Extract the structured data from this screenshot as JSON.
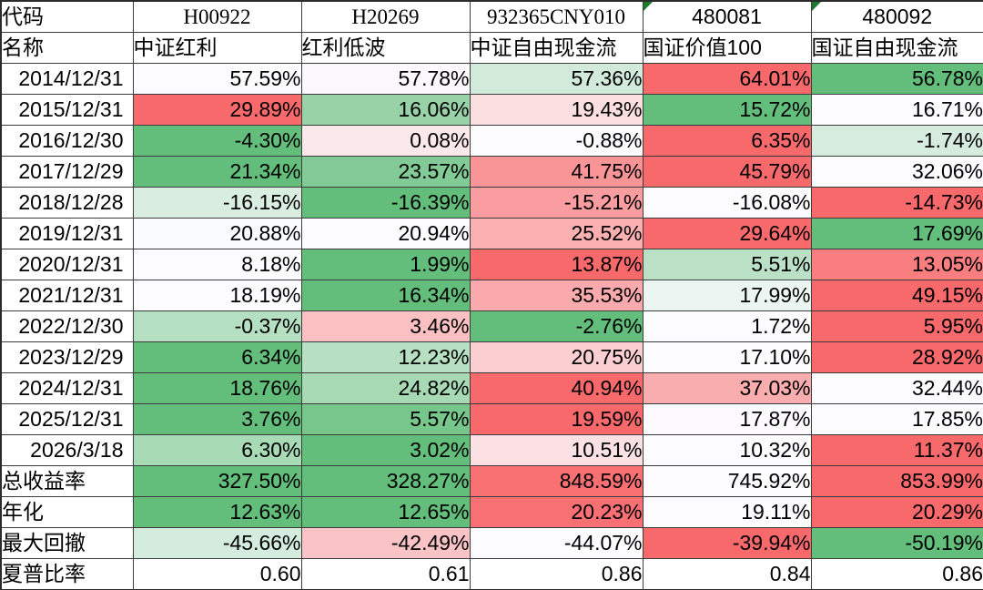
{
  "chart_data": {
    "type": "table",
    "subtype": "row-wise heatmap (green = row min, white = row median, red = row max; Sharpe row unformatted)",
    "header": {
      "code_label": "代码",
      "name_label": "名称"
    },
    "columns": [
      {
        "code": "H00922",
        "name": "中证红利",
        "code_serif": true,
        "flagged": false
      },
      {
        "code": "H20269",
        "name": "红利低波",
        "code_serif": true,
        "flagged": false
      },
      {
        "code": "932365CNY010",
        "name": "中证自由现金流",
        "code_serif": true,
        "flagged": false
      },
      {
        "code": "480081",
        "name": "国证价值100",
        "code_serif": false,
        "flagged": true
      },
      {
        "code": "480092",
        "name": "国证自由现金流",
        "code_serif": false,
        "flagged": true
      }
    ],
    "rows": [
      {
        "label": "2014/12/31",
        "align": "right",
        "heat": true,
        "values": [
          "57.59%",
          "57.78%",
          "57.36%",
          "64.01%",
          "56.78%"
        ]
      },
      {
        "label": "2015/12/31",
        "align": "right",
        "heat": true,
        "values": [
          "29.89%",
          "16.06%",
          "19.43%",
          "15.72%",
          "16.71%"
        ]
      },
      {
        "label": "2016/12/30",
        "align": "right",
        "heat": true,
        "values": [
          "-4.30%",
          "0.08%",
          "-0.88%",
          "6.35%",
          "-1.74%"
        ]
      },
      {
        "label": "2017/12/29",
        "align": "right",
        "heat": true,
        "values": [
          "21.34%",
          "23.57%",
          "41.75%",
          "45.79%",
          "32.06%"
        ]
      },
      {
        "label": "2018/12/28",
        "align": "right",
        "heat": true,
        "values": [
          "-16.15%",
          "-16.39%",
          "-15.21%",
          "-16.08%",
          "-14.73%"
        ]
      },
      {
        "label": "2019/12/31",
        "align": "right",
        "heat": true,
        "values": [
          "20.88%",
          "20.94%",
          "25.52%",
          "29.64%",
          "17.69%"
        ]
      },
      {
        "label": "2020/12/31",
        "align": "right",
        "heat": true,
        "values": [
          "8.18%",
          "1.99%",
          "13.87%",
          "5.51%",
          "13.05%"
        ]
      },
      {
        "label": "2021/12/31",
        "align": "right",
        "heat": true,
        "values": [
          "18.19%",
          "16.34%",
          "35.53%",
          "17.99%",
          "49.15%"
        ]
      },
      {
        "label": "2022/12/30",
        "align": "right",
        "heat": true,
        "values": [
          "-0.37%",
          "3.46%",
          "-2.76%",
          "1.72%",
          "5.95%"
        ]
      },
      {
        "label": "2023/12/29",
        "align": "right",
        "heat": true,
        "values": [
          "6.34%",
          "12.23%",
          "20.75%",
          "17.10%",
          "28.92%"
        ]
      },
      {
        "label": "2024/12/31",
        "align": "right",
        "heat": true,
        "values": [
          "18.76%",
          "24.82%",
          "40.94%",
          "37.03%",
          "32.44%"
        ]
      },
      {
        "label": "2025/12/31",
        "align": "right",
        "heat": true,
        "values": [
          "3.76%",
          "5.57%",
          "19.59%",
          "17.87%",
          "17.85%"
        ]
      },
      {
        "label": "2026/3/18",
        "align": "right",
        "heat": true,
        "values": [
          "6.30%",
          "3.02%",
          "10.51%",
          "10.32%",
          "11.37%"
        ]
      },
      {
        "label": "总收益率",
        "align": "left",
        "heat": true,
        "values": [
          "327.50%",
          "328.27%",
          "848.59%",
          "745.92%",
          "853.99%"
        ]
      },
      {
        "label": "年化",
        "align": "left",
        "heat": true,
        "values": [
          "12.63%",
          "12.65%",
          "20.23%",
          "19.11%",
          "20.29%"
        ]
      },
      {
        "label": "最大回撤",
        "align": "left",
        "heat": true,
        "values": [
          "-45.66%",
          "-42.49%",
          "-44.07%",
          "-39.94%",
          "-50.19%"
        ]
      },
      {
        "label": "夏普比率",
        "align": "left",
        "heat": false,
        "values": [
          "0.60",
          "0.61",
          "0.86",
          "0.84",
          "0.86"
        ]
      }
    ],
    "colors": {
      "scale_min_green": "#63BE7B",
      "scale_mid_white": "#FCFCFF",
      "scale_max_red": "#F8696B",
      "flag_triangle_green": "#1A7A2E",
      "grid_line": "#3c3c3c",
      "text": "#000000"
    }
  }
}
